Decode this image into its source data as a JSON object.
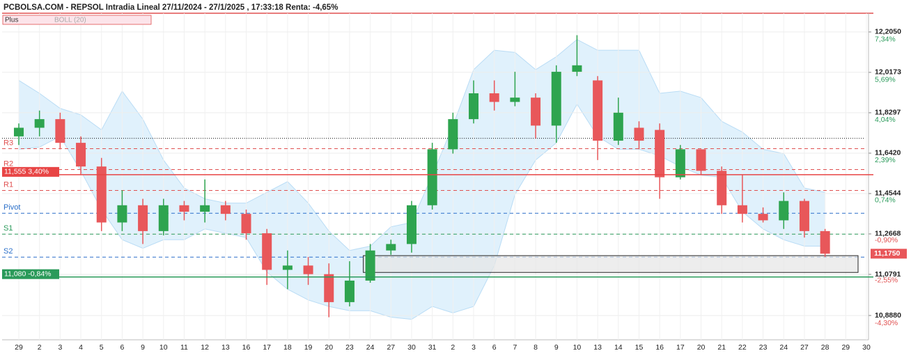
{
  "chart_data": {
    "type": "candlestick",
    "title": "PCBOLSA.COM - REPSOL Intradia Lineal 27/11/2024 - 27/1/2025 , 17:33:18 Renta: -4,65%",
    "indicator_label": "Plus",
    "band_label": "BOLL (20)",
    "categories": [
      "29",
      "2",
      "3",
      "4",
      "5",
      "6",
      "9",
      "10",
      "11",
      "12",
      "13",
      "16",
      "17",
      "18",
      "19",
      "20",
      "23",
      "24",
      "27",
      "30",
      "31",
      "2",
      "3",
      "6",
      "7",
      "8",
      "9",
      "10",
      "13",
      "14",
      "15",
      "16",
      "17",
      "20",
      "21",
      "22",
      "23",
      "24",
      "27",
      "28",
      "29",
      "30"
    ],
    "open": [
      11.72,
      11.76,
      11.8,
      11.69,
      11.58,
      11.32,
      11.4,
      11.28,
      11.4,
      11.37,
      11.4,
      11.36,
      11.27,
      11.1,
      11.12,
      11.08,
      10.95,
      11.05,
      11.19,
      11.22,
      11.4,
      11.66,
      11.8,
      11.92,
      11.88,
      11.9,
      11.77,
      12.02,
      11.98,
      11.7,
      11.76,
      11.75,
      11.53,
      11.66,
      11.56,
      11.4,
      11.36,
      11.33,
      11.42,
      11.28,
      null,
      null
    ],
    "high": [
      11.78,
      11.84,
      11.83,
      11.72,
      11.62,
      11.47,
      11.43,
      11.43,
      11.42,
      11.52,
      11.42,
      11.38,
      11.29,
      11.19,
      11.16,
      11.13,
      11.14,
      11.22,
      11.24,
      11.42,
      11.69,
      11.83,
      11.98,
      11.98,
      12.02,
      11.92,
      12.05,
      12.19,
      12.0,
      11.9,
      11.79,
      11.78,
      11.68,
      11.66,
      11.58,
      11.54,
      11.39,
      11.46,
      11.43,
      11.29,
      null,
      null
    ],
    "low": [
      11.68,
      11.72,
      11.66,
      11.54,
      11.28,
      11.28,
      11.22,
      11.26,
      11.33,
      11.32,
      11.33,
      11.24,
      11.03,
      11.01,
      11.03,
      10.88,
      10.93,
      11.04,
      11.17,
      11.18,
      11.38,
      11.64,
      11.78,
      11.84,
      11.86,
      11.71,
      11.69,
      12.0,
      11.61,
      11.68,
      11.66,
      11.43,
      11.52,
      11.54,
      11.36,
      11.32,
      11.32,
      11.29,
      11.25,
      11.16,
      null,
      null
    ],
    "close": [
      11.76,
      11.8,
      11.69,
      11.58,
      11.32,
      11.4,
      11.28,
      11.4,
      11.37,
      11.4,
      11.36,
      11.27,
      11.1,
      11.12,
      11.08,
      10.95,
      11.05,
      11.19,
      11.22,
      11.4,
      11.66,
      11.8,
      11.92,
      11.88,
      11.9,
      11.77,
      12.02,
      12.05,
      11.7,
      11.83,
      11.7,
      11.53,
      11.66,
      11.56,
      11.4,
      11.36,
      11.33,
      11.42,
      11.28,
      11.175,
      null,
      null
    ],
    "up_color": "#2ea44f",
    "down_color": "#e8575a",
    "band_upper": [
      11.98,
      11.92,
      11.85,
      11.82,
      11.75,
      11.93,
      11.8,
      11.61,
      11.48,
      11.43,
      11.41,
      11.41,
      11.46,
      11.51,
      11.41,
      11.28,
      11.19,
      11.21,
      11.3,
      11.32,
      11.54,
      11.77,
      12.03,
      12.12,
      12.11,
      12.03,
      12.09,
      12.17,
      12.12,
      12.12,
      12.12,
      11.92,
      11.93,
      11.9,
      11.79,
      11.74,
      11.66,
      11.64,
      11.48,
      11.46,
      null,
      null
    ],
    "band_lower": [
      11.66,
      11.67,
      11.72,
      11.56,
      11.38,
      11.24,
      11.2,
      11.24,
      11.24,
      11.29,
      11.27,
      11.25,
      11.09,
      11.01,
      10.96,
      10.93,
      10.91,
      10.91,
      10.88,
      10.87,
      10.93,
      10.9,
      10.93,
      11.12,
      11.45,
      11.61,
      11.69,
      11.87,
      11.72,
      11.66,
      11.66,
      11.63,
      11.58,
      11.54,
      11.53,
      11.37,
      11.29,
      11.24,
      11.21,
      11.21,
      null,
      null
    ],
    "band_color": "#d6ecfb",
    "ylim": [
      10.775,
      12.292
    ],
    "yticks": [
      {
        "value": 12.205,
        "label": "12,2050"
      },
      {
        "value": 12.0173,
        "label": "12,0173"
      },
      {
        "value": 11.8297,
        "label": "11,8297"
      },
      {
        "value": 11.642,
        "label": "11,6420"
      },
      {
        "value": 11.4544,
        "label": "11,4544"
      },
      {
        "value": 11.2668,
        "label": "11,2668"
      },
      {
        "value": 11.0791,
        "label": "11,0791"
      },
      {
        "value": 10.888,
        "label": "10,8880"
      }
    ],
    "y2lim": [
      -5.3,
      8.11
    ],
    "y2ticks": [
      {
        "value": 7.34,
        "label": "7,34%"
      },
      {
        "value": 5.69,
        "label": "5,69%"
      },
      {
        "value": 4.04,
        "label": "4,04%"
      },
      {
        "value": 2.39,
        "label": "2,39%"
      },
      {
        "value": 0.74,
        "label": "0,74%"
      },
      {
        "value": -0.9,
        "label": "-0,90%"
      },
      {
        "value": -2.55,
        "label": "-2,55%"
      },
      {
        "value": -4.3,
        "label": "-4,30%"
      }
    ],
    "levels": [
      {
        "name": "R3",
        "value": 11.663,
        "color": "#e05050"
      },
      {
        "name": "R2",
        "value": 11.566,
        "color": "#e05050"
      },
      {
        "name": "R1",
        "value": 11.469,
        "color": "#e05050"
      },
      {
        "name": "Pivot",
        "value": 11.363,
        "color": "#2a6fc9"
      },
      {
        "name": "S1",
        "value": 11.266,
        "color": "#2a9a5a"
      },
      {
        "name": "S2",
        "value": 11.159,
        "color": "#2a6fc9"
      }
    ],
    "dotted_level": 11.711,
    "tagged_levels": [
      {
        "value": 11.555,
        "label": "11,555  3,40%",
        "color": "#e84545"
      },
      {
        "value": 11.08,
        "label": "11,080  -0,84%",
        "color": "#2a9a5a"
      }
    ],
    "zone": {
      "low": 11.088,
      "high": 11.166
    },
    "last_price": {
      "value": 11.175,
      "label": "11,1750"
    }
  }
}
